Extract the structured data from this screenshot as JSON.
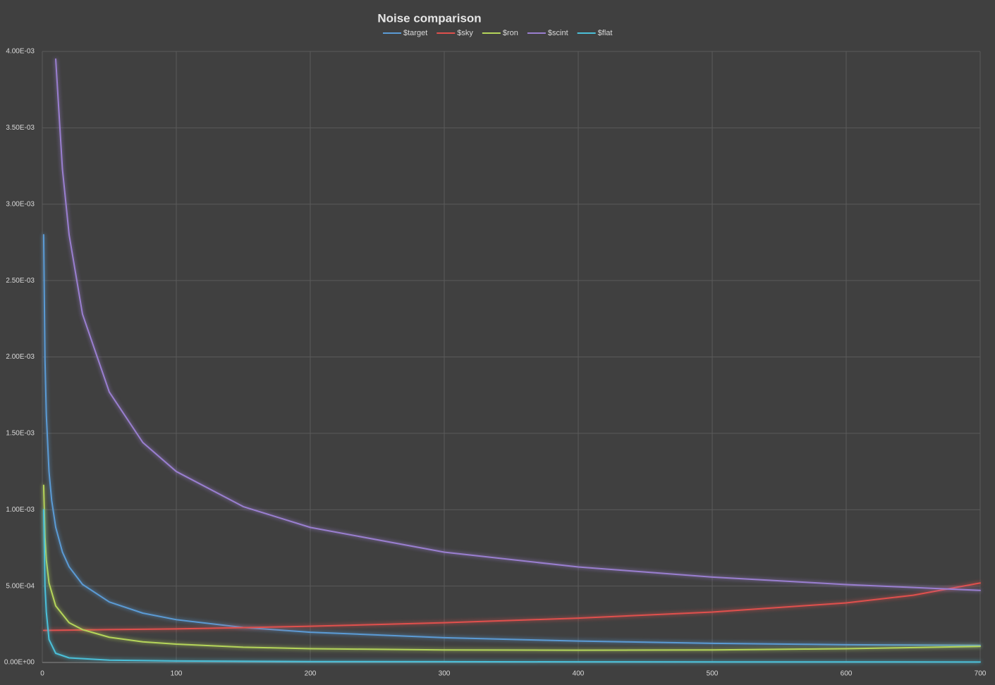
{
  "chart_data": {
    "type": "line",
    "title": "Noise comparison",
    "xlim": [
      0,
      700
    ],
    "xticks": [
      0,
      100,
      200,
      300,
      400,
      500,
      600,
      700
    ],
    "ylim": [
      0,
      0.004
    ],
    "yticks": [
      {
        "value": 0,
        "label": "0.00E+00"
      },
      {
        "value": 0.0005,
        "label": "5.00E-04"
      },
      {
        "value": 0.001,
        "label": "1.00E-03"
      },
      {
        "value": 0.0015,
        "label": "1.50E-03"
      },
      {
        "value": 0.002,
        "label": "2.00E-03"
      },
      {
        "value": 0.0025,
        "label": "2.50E-03"
      },
      {
        "value": 0.003,
        "label": "3.00E-03"
      },
      {
        "value": 0.0035,
        "label": "3.50E-03"
      },
      {
        "value": 0.004,
        "label": "4.00E-03"
      }
    ],
    "grid": true,
    "legend": "top",
    "series": [
      {
        "name": "$target",
        "color": "#5b9bd5",
        "x": [
          1,
          2,
          3,
          5,
          7,
          10,
          15,
          20,
          30,
          50,
          75,
          100,
          150,
          200,
          300,
          400,
          500,
          600,
          700
        ],
        "values": [
          0.0028,
          0.00198,
          0.00162,
          0.00125,
          0.00106,
          0.000885,
          0.000723,
          0.000626,
          0.000511,
          0.000396,
          0.000323,
          0.00028,
          0.000229,
          0.000198,
          0.000162,
          0.00014,
          0.000125,
          0.000116,
          0.000112
        ]
      },
      {
        "name": "$sky",
        "color": "#e0504d",
        "x": [
          1,
          50,
          100,
          150,
          200,
          300,
          400,
          500,
          600,
          650,
          700
        ],
        "values": [
          0.00021,
          0.000215,
          0.00022,
          0.000228,
          0.000237,
          0.00026,
          0.00029,
          0.00033,
          0.00039,
          0.00044,
          0.00052
        ]
      },
      {
        "name": "$ron",
        "color": "#b5d55a",
        "x": [
          1,
          2,
          3,
          5,
          10,
          20,
          30,
          50,
          75,
          100,
          150,
          200,
          300,
          400,
          500,
          600,
          700
        ],
        "values": [
          0.00116,
          0.00082,
          0.00067,
          0.00052,
          0.00037,
          0.00026,
          0.000215,
          0.000165,
          0.000135,
          0.00012,
          0.0001,
          9e-05,
          8.2e-05,
          8e-05,
          8.2e-05,
          9e-05,
          0.000105
        ]
      },
      {
        "name": "$scint",
        "color": "#9a7fd0",
        "x": [
          10,
          15,
          20,
          30,
          50,
          75,
          100,
          150,
          200,
          300,
          400,
          500,
          600,
          700
        ],
        "values": [
          0.00395,
          0.00323,
          0.0028,
          0.00228,
          0.00177,
          0.00144,
          0.00125,
          0.00102,
          0.000884,
          0.000722,
          0.000625,
          0.000559,
          0.00051,
          0.000472
        ]
      },
      {
        "name": "$flat",
        "color": "#4bc0d9",
        "x": [
          1,
          2,
          3,
          5,
          10,
          20,
          50,
          100,
          200,
          400,
          700
        ],
        "values": [
          0.001,
          0.0005,
          0.00033,
          0.00015,
          6e-05,
          3e-05,
          1.5e-05,
          1e-05,
          6e-06,
          4e-06,
          3e-06
        ]
      }
    ]
  }
}
